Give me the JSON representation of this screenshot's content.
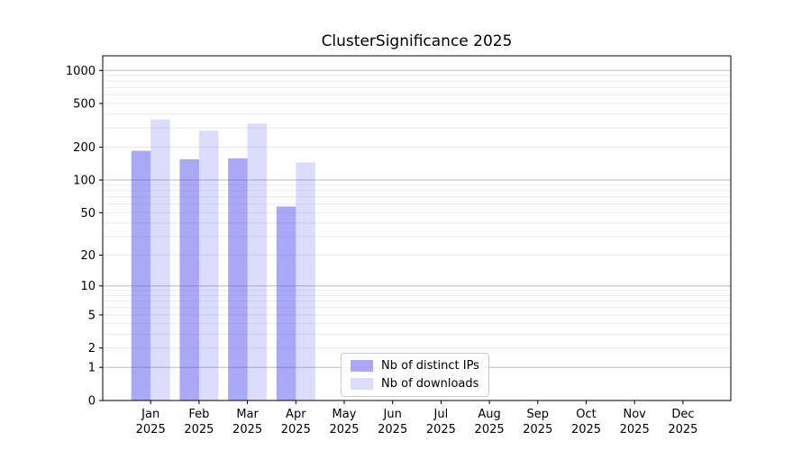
{
  "chart_data": {
    "type": "bar",
    "title": "ClusterSignificance 2025",
    "categories": [
      "Jan",
      "Feb",
      "Mar",
      "Apr",
      "May",
      "Jun",
      "Jul",
      "Aug",
      "Sep",
      "Oct",
      "Nov",
      "Dec"
    ],
    "x_tick_year": "2025",
    "series": [
      {
        "name": "Nb of distinct IPs",
        "color": "rgba(80,80,240,0.49)",
        "values": [
          185,
          155,
          158,
          57,
          0,
          0,
          0,
          0,
          0,
          0,
          0,
          0
        ]
      },
      {
        "name": "Nb of downloads",
        "color": "rgba(80,80,240,0.20)",
        "values": [
          358,
          282,
          328,
          145,
          0,
          0,
          0,
          0,
          0,
          0,
          0,
          0
        ]
      }
    ],
    "y_scale": "log10(1+v)",
    "ylim": [
      0,
      1360
    ],
    "y_ticks": [
      0,
      1,
      2,
      5,
      10,
      20,
      50,
      100,
      200,
      500,
      1000
    ],
    "y_major_gridlines": [
      1,
      10,
      100,
      1000
    ],
    "y_minor_gridlines": [
      2,
      3,
      4,
      5,
      6,
      7,
      8,
      9,
      20,
      30,
      40,
      50,
      60,
      70,
      80,
      90,
      200,
      300,
      400,
      500,
      600,
      700,
      800,
      900
    ],
    "grid": true,
    "legend_position": "inside-bottom-center",
    "colors": {
      "major_grid": "#bcbcbc",
      "minor_grid": "#ebebeb",
      "axis": "#000000",
      "text": "#000000",
      "background": "#ffffff"
    }
  }
}
